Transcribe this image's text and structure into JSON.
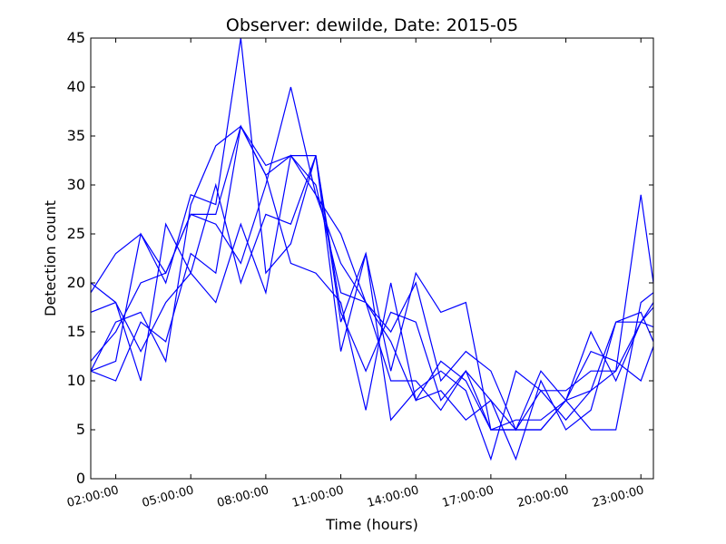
{
  "chart_data": {
    "type": "line",
    "title": "Observer: dewilde, Date: 2015-05",
    "xlabel": "Time (hours)",
    "ylabel": "Detection count",
    "xlim": [
      1,
      23.5
    ],
    "ylim": [
      0,
      45
    ],
    "grid": false,
    "x_ticks": [
      {
        "value": 2,
        "label": "02:00:00"
      },
      {
        "value": 5,
        "label": "05:00:00"
      },
      {
        "value": 8,
        "label": "08:00:00"
      },
      {
        "value": 11,
        "label": "11:00:00"
      },
      {
        "value": 14,
        "label": "14:00:00"
      },
      {
        "value": 17,
        "label": "17:00:00"
      },
      {
        "value": 20,
        "label": "20:00:00"
      },
      {
        "value": 23,
        "label": "23:00:00"
      }
    ],
    "y_ticks": [
      0,
      5,
      10,
      15,
      20,
      25,
      30,
      35,
      40,
      45
    ],
    "x": [
      1,
      2,
      3,
      4,
      5,
      6,
      7,
      8,
      9,
      10,
      11,
      12,
      13,
      14,
      15,
      16,
      17,
      18,
      19,
      20,
      21,
      22,
      23,
      24
    ],
    "series": [
      {
        "values": [
          19,
          23,
          25,
          20,
          29,
          28,
          45,
          21,
          24,
          33,
          16,
          23,
          11,
          21,
          17,
          18,
          5,
          5,
          5,
          8,
          9,
          11,
          29,
          11
        ]
      },
      {
        "values": [
          11,
          16,
          17,
          12,
          28,
          34,
          36,
          32,
          33,
          29,
          25,
          18,
          15,
          20,
          10,
          13,
          11,
          5,
          11,
          8,
          5,
          5,
          18,
          20
        ]
      },
      {
        "values": [
          12,
          15,
          20,
          21,
          27,
          26,
          22,
          30,
          40,
          29,
          22,
          18,
          14,
          8,
          12,
          10,
          5,
          6,
          6,
          8,
          15,
          10,
          16,
          19
        ]
      },
      {
        "values": [
          17,
          18,
          10,
          26,
          21,
          18,
          26,
          19,
          33,
          30,
          19,
          18,
          10,
          10,
          7,
          11,
          5,
          5,
          5,
          8,
          13,
          12,
          10,
          17
        ]
      },
      {
        "values": [
          20,
          18,
          13,
          18,
          21,
          30,
          20,
          27,
          26,
          33,
          13,
          23,
          6,
          9,
          11,
          9,
          2,
          11,
          9,
          6,
          9,
          16,
          16,
          20
        ]
      },
      {
        "values": [
          11,
          10,
          16,
          14,
          23,
          21,
          36,
          31,
          22,
          21,
          18,
          7,
          20,
          8,
          9,
          6,
          8,
          2,
          10,
          5,
          7,
          16,
          17,
          11
        ]
      },
      {
        "values": [
          11,
          12,
          25,
          21,
          27,
          27,
          36,
          31,
          33,
          33,
          17,
          11,
          17,
          16,
          8,
          11,
          8,
          5,
          9,
          9,
          11,
          11,
          16,
          15
        ]
      }
    ],
    "line_color": "#0000ff"
  }
}
